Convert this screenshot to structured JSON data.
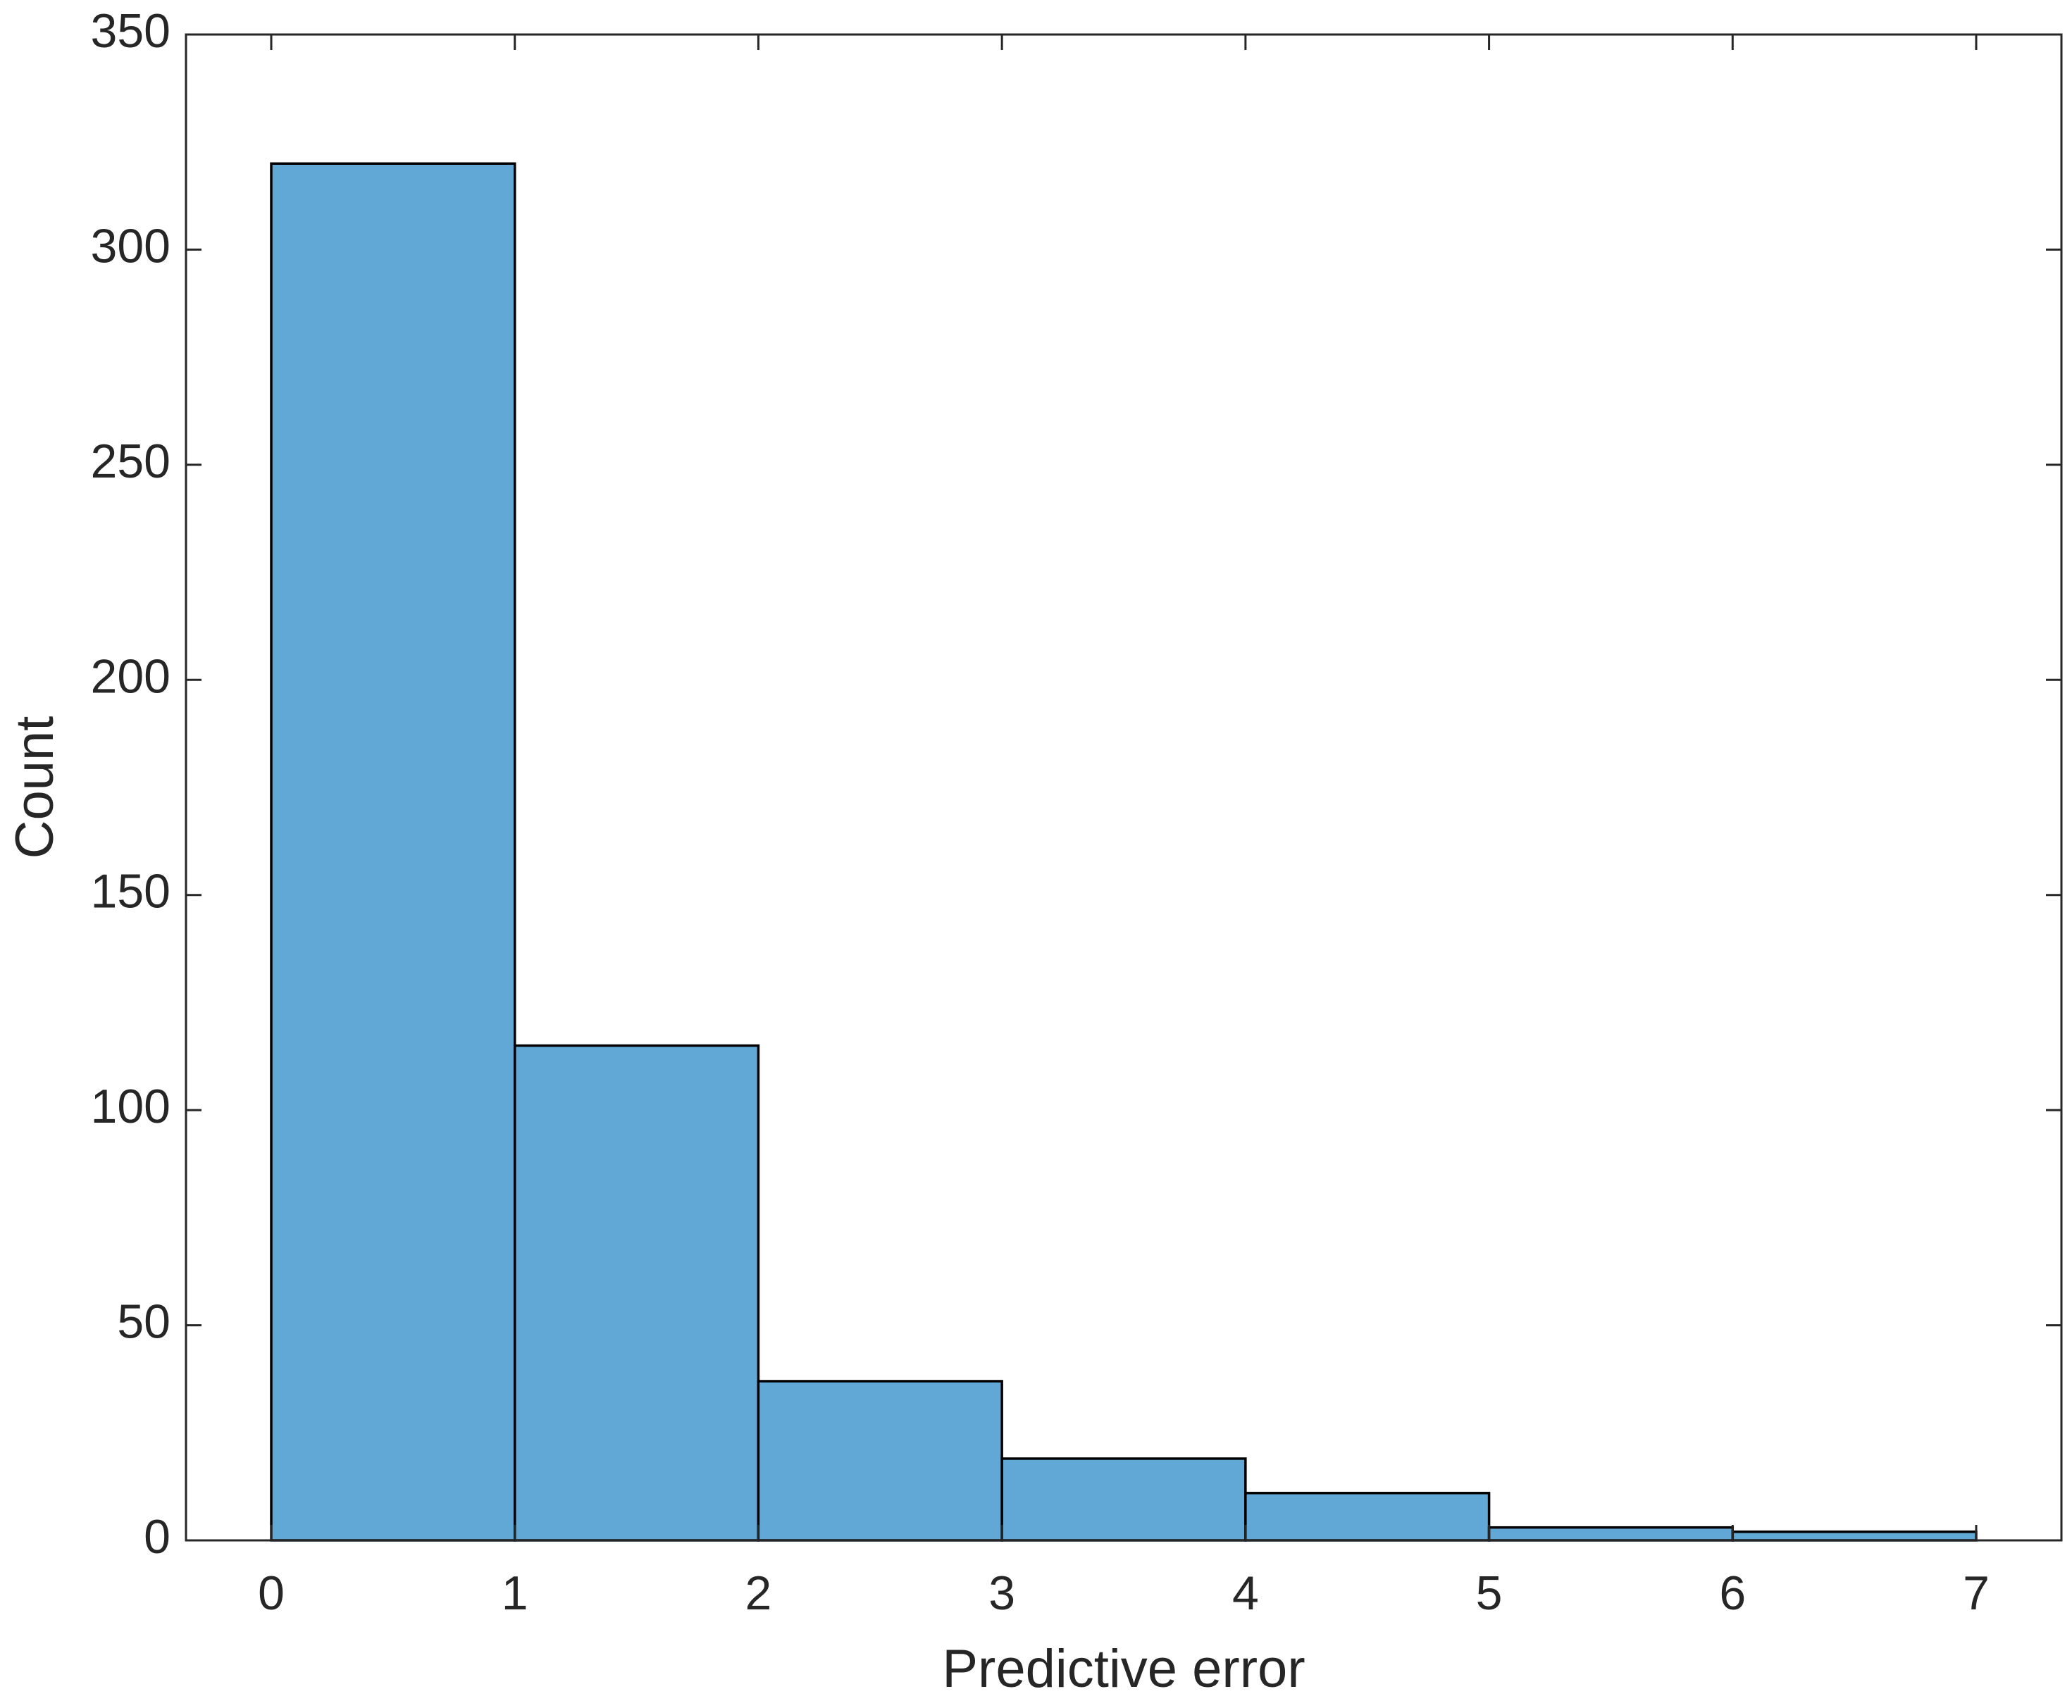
{
  "chart_data": {
    "type": "histogram",
    "xlabel": "Predictive error",
    "ylabel": "Count",
    "bins": [
      0,
      1,
      2,
      3,
      4,
      5,
      6,
      7
    ],
    "values": [
      320,
      115,
      37,
      19,
      11,
      3,
      2
    ],
    "color": "#62a8d6",
    "xlim": [
      -0.35,
      7.35
    ],
    "xticks": [
      0,
      1,
      2,
      3,
      4,
      5,
      6,
      7
    ],
    "ylim": [
      0,
      350
    ],
    "yticks": [
      0,
      50,
      100,
      150,
      200,
      250,
      300,
      350
    ],
    "grid": false
  }
}
